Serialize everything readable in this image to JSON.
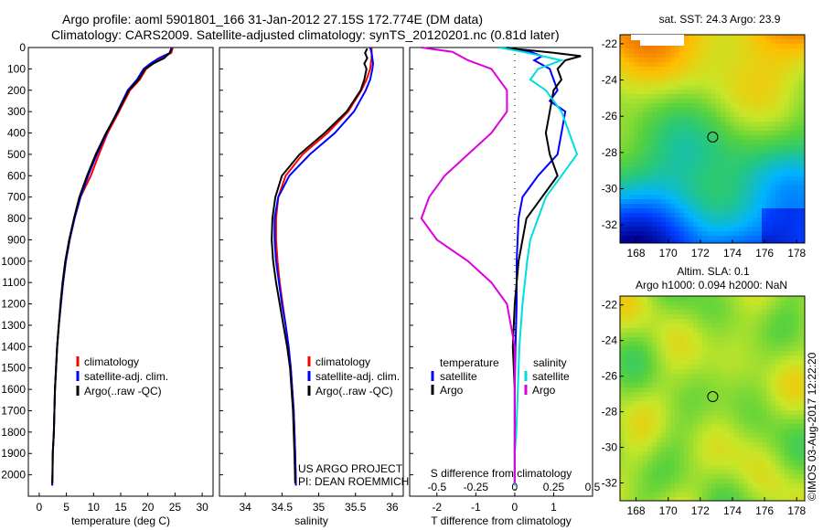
{
  "header": {
    "line1": "Argo profile: aoml 5901801_166 31-Jan-2012 27.15S 172.774E (DM data)",
    "line2": "Climatology: CARS2009. Satellite-adjusted climatology: synTS_20120201.nc (0.81d later)"
  },
  "chart_data": [
    {
      "id": "temperature",
      "type": "line",
      "xlabel": "temperature (deg C)",
      "ylabel": "",
      "xlim": [
        -2,
        32
      ],
      "ylim": [
        2100,
        0
      ],
      "xticks": [
        0,
        5,
        10,
        15,
        20,
        25,
        30
      ],
      "yticks": [
        0,
        100,
        200,
        300,
        400,
        500,
        600,
        700,
        800,
        900,
        1000,
        1100,
        1200,
        1300,
        1400,
        1500,
        1600,
        1700,
        1800,
        1900,
        2000
      ],
      "legend": [
        "climatology",
        "satellite-adj. clim.",
        "Argo(..raw -QC)"
      ],
      "series": [
        {
          "name": "climatology",
          "color": "#ff0000",
          "x": [
            24.6,
            24.3,
            22.5,
            21.0,
            19.7,
            18.5,
            16.7,
            14.7,
            12.6,
            11.0,
            9.5,
            7.6,
            6.5,
            5.6,
            4.9,
            4.4,
            4.0,
            3.6,
            3.3,
            3.1,
            2.9,
            2.8,
            2.7,
            2.5,
            2.45,
            2.4
          ],
          "y": [
            0,
            25,
            50,
            75,
            100,
            150,
            200,
            300,
            400,
            500,
            600,
            700,
            800,
            900,
            1000,
            1100,
            1200,
            1300,
            1400,
            1500,
            1600,
            1700,
            1800,
            1900,
            2000,
            2050
          ]
        },
        {
          "name": "satellite-adj. clim.",
          "color": "#0000ff",
          "x": [
            24.4,
            24.1,
            22.0,
            20.5,
            19.2,
            18.0,
            16.3,
            14.4,
            12.4,
            10.6,
            9.0,
            7.6,
            6.5,
            5.6,
            4.9,
            4.4,
            4.0,
            3.6,
            3.3,
            3.1,
            2.9,
            2.8,
            2.7,
            2.5,
            2.45,
            2.4
          ],
          "y": [
            0,
            25,
            50,
            75,
            100,
            150,
            200,
            300,
            400,
            500,
            600,
            700,
            800,
            900,
            1000,
            1100,
            1200,
            1300,
            1400,
            1500,
            1600,
            1700,
            1800,
            1900,
            2000,
            2050
          ]
        },
        {
          "name": "Argo(..raw -QC)",
          "color": "#000000",
          "x": [
            24.3,
            24.0,
            23.0,
            21.0,
            19.5,
            18.3,
            16.5,
            14.5,
            12.3,
            10.4,
            8.8,
            7.4,
            6.4,
            5.5,
            4.8,
            4.3,
            3.9,
            3.6,
            3.3,
            3.1,
            2.9,
            2.8,
            2.7,
            2.5,
            2.45,
            2.4
          ],
          "y": [
            5,
            25,
            50,
            75,
            100,
            150,
            200,
            300,
            400,
            500,
            600,
            700,
            800,
            900,
            1000,
            1100,
            1200,
            1300,
            1400,
            1500,
            1600,
            1700,
            1800,
            1900,
            2000,
            2040
          ]
        }
      ]
    },
    {
      "id": "salinity",
      "type": "line",
      "xlabel": "salinity",
      "ylabel": "",
      "xlim": [
        33.65,
        36.15
      ],
      "ylim": [
        2100,
        0
      ],
      "xticks": [
        34,
        34.5,
        35,
        35.5,
        36
      ],
      "legend": [
        "climatology",
        "satellite-adj. clim.",
        "Argo(..raw -QC)"
      ],
      "annotation": [
        "US ARGO PROJECT",
        "PI: DEAN ROEMMICH"
      ],
      "series": [
        {
          "name": "climatology",
          "color": "#ff0000",
          "x": [
            35.72,
            35.72,
            35.72,
            35.71,
            35.7,
            35.65,
            35.58,
            35.4,
            35.12,
            34.78,
            34.55,
            34.45,
            34.42,
            34.42,
            34.44,
            34.47,
            34.51,
            34.55,
            34.59,
            34.62,
            34.64,
            34.66,
            34.67,
            34.68,
            34.69
          ],
          "y": [
            0,
            25,
            50,
            75,
            100,
            150,
            200,
            300,
            400,
            500,
            600,
            700,
            800,
            900,
            1000,
            1100,
            1200,
            1300,
            1400,
            1500,
            1600,
            1700,
            1800,
            1900,
            2050
          ]
        },
        {
          "name": "satellite-adj. clim.",
          "color": "#0000ff",
          "x": [
            35.7,
            35.72,
            35.73,
            35.74,
            35.73,
            35.7,
            35.64,
            35.48,
            35.22,
            34.88,
            34.6,
            34.45,
            34.4,
            34.4,
            34.42,
            34.46,
            34.5,
            34.55,
            34.59,
            34.62,
            34.64,
            34.66,
            34.67,
            34.68,
            34.69
          ],
          "y": [
            0,
            25,
            50,
            75,
            100,
            150,
            200,
            300,
            400,
            500,
            600,
            700,
            800,
            900,
            1000,
            1100,
            1200,
            1300,
            1400,
            1500,
            1600,
            1700,
            1800,
            1900,
            2050
          ]
        },
        {
          "name": "Argo(..raw -QC)",
          "color": "#000000",
          "x": [
            35.66,
            35.63,
            35.66,
            35.62,
            35.65,
            35.62,
            35.57,
            35.38,
            35.08,
            34.74,
            34.5,
            34.41,
            34.37,
            34.36,
            34.38,
            34.42,
            34.47,
            34.52,
            34.57,
            34.61,
            34.63,
            34.65,
            34.66,
            34.67,
            34.68
          ],
          "y": [
            5,
            25,
            50,
            75,
            100,
            150,
            200,
            300,
            400,
            500,
            600,
            700,
            800,
            900,
            1000,
            1100,
            1200,
            1300,
            1400,
            1500,
            1600,
            1700,
            1800,
            1900,
            2040
          ]
        }
      ]
    },
    {
      "id": "differences",
      "type": "line",
      "xlabel": "T difference from climatology",
      "xlabel_top": "S difference from climatology",
      "xlim": [
        -2.7,
        2.0
      ],
      "ylim": [
        2100,
        0
      ],
      "xticks_t": [
        "-2",
        "-1",
        "0",
        "1"
      ],
      "xticks_t_values": [
        -2,
        -1,
        0,
        1
      ],
      "xticks_s": [
        "-0.5",
        "-0.25",
        "0",
        "0.25",
        "0.5"
      ],
      "xticks_s_values": [
        -0.5,
        -0.25,
        0,
        0.25,
        0.5
      ],
      "legend_t_title": "temperature",
      "legend_t": [
        "satellite",
        "Argo"
      ],
      "legend_s_title": "salinity",
      "legend_s": [
        "satellite",
        "Argo"
      ],
      "series": [
        {
          "name": "satellite",
          "group": "temperature",
          "color": "#0000ff",
          "x": [
            -0.2,
            0.4,
            0.7,
            0.5,
            0.9,
            1.0,
            1.1,
            0.9,
            1.3,
            1.2,
            1.1,
            0.6,
            0.2,
            0.1,
            0.05,
            0.05,
            0.02,
            0.0,
            0.0,
            0.0,
            0.0
          ],
          "y": [
            0,
            20,
            40,
            60,
            100,
            150,
            200,
            250,
            300,
            400,
            500,
            600,
            700,
            800,
            1000,
            1200,
            1400,
            1600,
            1800,
            1900,
            2050
          ]
        },
        {
          "name": "Argo",
          "group": "temperature",
          "color": "#000000",
          "x": [
            -0.4,
            0.2,
            1.0,
            1.7,
            1.3,
            1.1,
            1.2,
            1.0,
            0.9,
            0.8,
            0.9,
            1.1,
            0.7,
            0.3,
            0.1,
            0.0,
            -0.05,
            0.0,
            0.0,
            0.0,
            0.0
          ],
          "y": [
            0,
            10,
            25,
            40,
            60,
            100,
            150,
            200,
            300,
            400,
            500,
            600,
            700,
            800,
            1000,
            1200,
            1400,
            1600,
            1800,
            1900,
            2040
          ]
        },
        {
          "name": "satellite",
          "group": "salinity",
          "color": "#00dddd",
          "x": [
            -0.1,
            0.05,
            0.3,
            0.15,
            0.1,
            0.2,
            0.3,
            0.35,
            0.4,
            0.3,
            0.2,
            0.15,
            0.1,
            0.08,
            0.05,
            0.03,
            0.02,
            0.01,
            0.0,
            0.0
          ],
          "y": [
            0,
            20,
            60,
            100,
            150,
            200,
            300,
            400,
            500,
            600,
            700,
            800,
            900,
            1000,
            1200,
            1400,
            1600,
            1800,
            1900,
            2050
          ]
        },
        {
          "name": "Argo",
          "group": "salinity",
          "color": "#dd00dd",
          "x": [
            -0.6,
            -0.4,
            -0.3,
            -0.15,
            -0.05,
            -0.05,
            -0.15,
            -0.3,
            -0.45,
            -0.55,
            -0.6,
            -0.5,
            -0.3,
            -0.15,
            -0.05,
            0.0,
            0.0,
            0.0
          ],
          "y": [
            0,
            20,
            60,
            100,
            200,
            300,
            400,
            500,
            600,
            700,
            800,
            900,
            1000,
            1100,
            1200,
            1400,
            1600,
            2040
          ]
        }
      ]
    },
    {
      "id": "sst_map",
      "type": "heatmap",
      "title": "sat. SST: 24.3 Argo: 23.9",
      "xlim": [
        167,
        178.5
      ],
      "ylim": [
        -33,
        -21.5
      ],
      "xticks": [
        168,
        170,
        172,
        174,
        176,
        178
      ],
      "yticks": [
        -22,
        -24,
        -26,
        -28,
        -30,
        -32
      ],
      "marker": {
        "lon": 172.774,
        "lat": -27.15
      }
    },
    {
      "id": "sla_map",
      "type": "heatmap",
      "title_lines": [
        "Altim. SLA: 0.1",
        "Argo h1000: 0.094 h2000: NaN"
      ],
      "xlim": [
        167,
        178.5
      ],
      "ylim": [
        -33,
        -21.5
      ],
      "xticks": [
        168,
        170,
        172,
        174,
        176,
        178
      ],
      "yticks": [
        -22,
        -24,
        -26,
        -28,
        -30,
        -32
      ],
      "marker": {
        "lon": 172.774,
        "lat": -27.15
      }
    }
  ],
  "credit": "©IMOS 03-Aug-2017 12:22:20",
  "colors": {
    "climatology": "#ff0000",
    "satellite": "#0000ff",
    "argo": "#000000",
    "sal_satellite": "#00dddd",
    "sal_argo": "#dd00dd"
  }
}
